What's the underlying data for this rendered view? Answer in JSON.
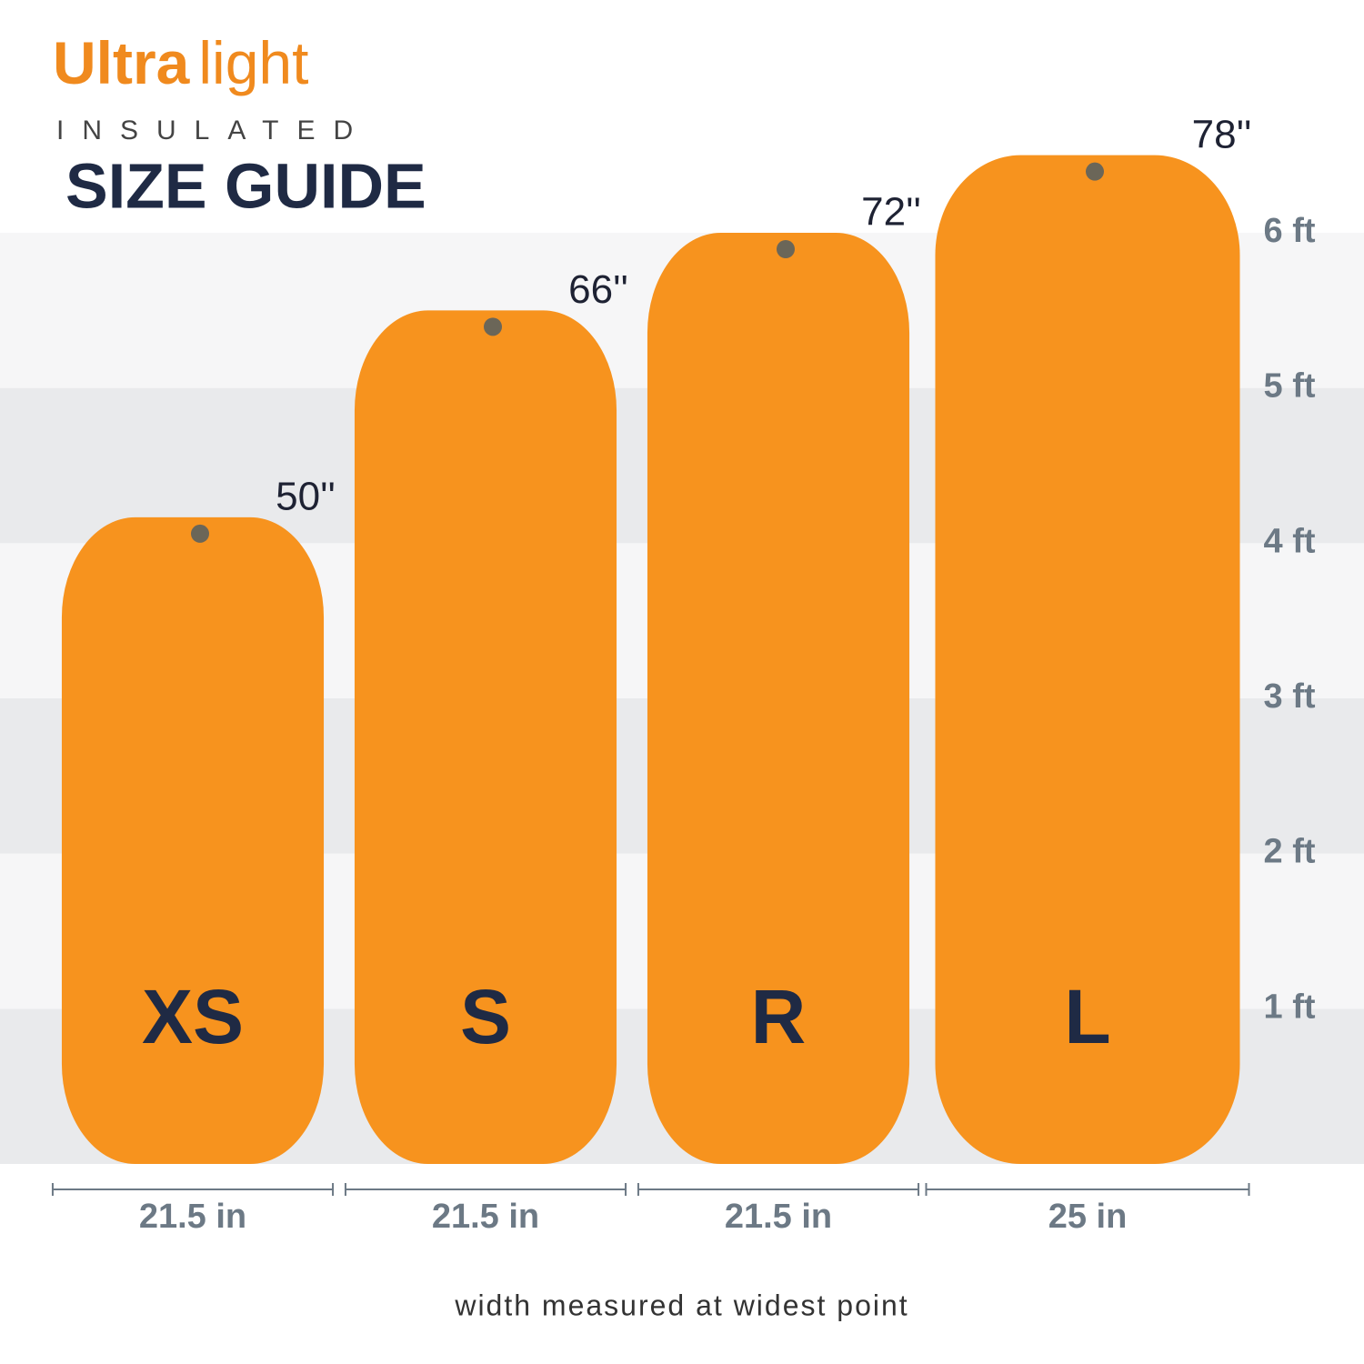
{
  "chart_data": {
    "type": "bar",
    "brand_bold": "Ultra",
    "brand_light": "light",
    "subtitle": "INSULATED",
    "title": "SIZE GUIDE",
    "categories": [
      "XS",
      "S",
      "R",
      "L"
    ],
    "values": [
      50,
      66,
      72,
      78
    ],
    "value_labels": [
      "50''",
      "66''",
      "72''",
      "78''"
    ],
    "widths": [
      21.5,
      21.5,
      21.5,
      25
    ],
    "width_labels": [
      "21.5 in",
      "21.5 in",
      "21.5 in",
      "25 in"
    ],
    "color": "#f7931e",
    "ylim": [
      0,
      90
    ],
    "yticks": [
      {
        "value": 12,
        "label": "1 ft"
      },
      {
        "value": 24,
        "label": "2 ft"
      },
      {
        "value": 36,
        "label": "3 ft"
      },
      {
        "value": 48,
        "label": "4 ft"
      },
      {
        "value": 60,
        "label": "5 ft"
      },
      {
        "value": 72,
        "label": "6 ft"
      }
    ],
    "note": "width measured at widest point"
  }
}
